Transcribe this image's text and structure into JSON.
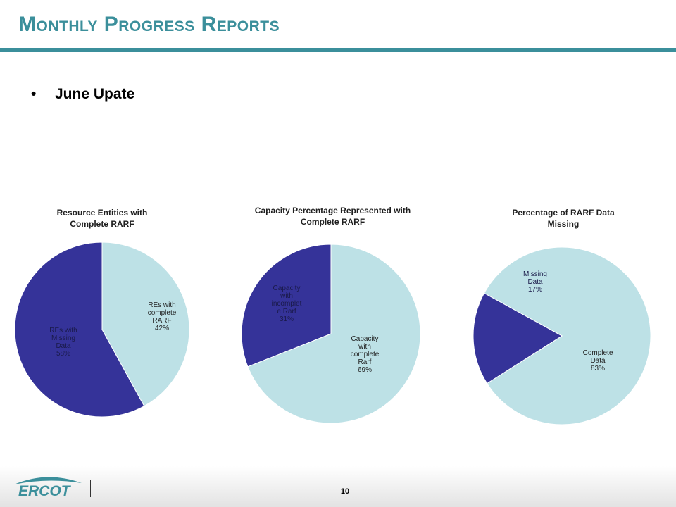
{
  "slide": {
    "title": "Monthly Progress Reports",
    "bullet": "June Upate",
    "page_number": "10",
    "logo_text": "ERCOT"
  },
  "colors": {
    "accent": "#3b8f9b",
    "dark_slice": "#353399",
    "light_slice": "#bde1e6"
  },
  "chart_data": [
    {
      "type": "pie",
      "title": "Resource Entities with Complete RARF",
      "slices": [
        {
          "label": "REs with complete RARF",
          "text": "REs with complete RARF 42%",
          "value": 42,
          "color": "#bde1e6"
        },
        {
          "label": "REs with Missing Data",
          "text": "REs with Missing Data 58%",
          "value": 58,
          "color": "#353399"
        }
      ]
    },
    {
      "type": "pie",
      "title": "Capacity Percentage Represented with Complete RARF",
      "slices": [
        {
          "label": "Capacity with complete Rarf",
          "text": "Capacity with complete Rarf 69%",
          "value": 69,
          "color": "#bde1e6"
        },
        {
          "label": "Capacity with incomplete Rarf",
          "text": "Capacity with incomplet e Rarf 31%",
          "value": 31,
          "color": "#353399"
        }
      ]
    },
    {
      "type": "pie",
      "title": "Percentage of RARF Data Missing",
      "slices": [
        {
          "label": "Complete Data",
          "text": "Complete Data 83%",
          "value": 83,
          "color": "#bde1e6"
        },
        {
          "label": "Missing Data",
          "text": "Missing Data 17%",
          "value": 17,
          "color": "#353399"
        }
      ]
    }
  ]
}
